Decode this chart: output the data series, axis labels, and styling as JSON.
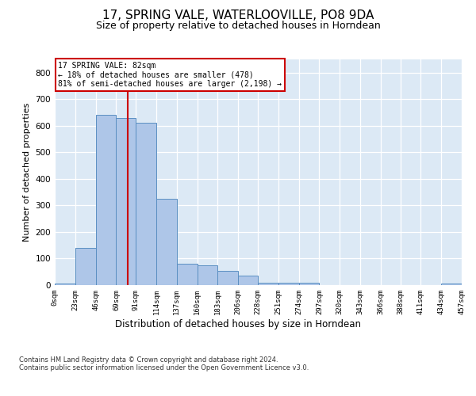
{
  "title1": "17, SPRING VALE, WATERLOOVILLE, PO8 9DA",
  "title2": "Size of property relative to detached houses in Horndean",
  "xlabel": "Distribution of detached houses by size in Horndean",
  "ylabel": "Number of detached properties",
  "footnote": "Contains HM Land Registry data © Crown copyright and database right 2024.\nContains public sector information licensed under the Open Government Licence v3.0.",
  "bin_edges": [
    0,
    23,
    46,
    69,
    91,
    114,
    137,
    160,
    183,
    206,
    228,
    251,
    274,
    297,
    320,
    343,
    366,
    388,
    411,
    434,
    457
  ],
  "bar_heights": [
    5,
    140,
    640,
    630,
    610,
    325,
    80,
    75,
    55,
    35,
    10,
    10,
    10,
    0,
    0,
    0,
    0,
    0,
    0,
    5
  ],
  "bar_color": "#aec6e8",
  "bar_edge_color": "#5a8fc2",
  "property_size": 82,
  "annotation_line1": "17 SPRING VALE: 82sqm",
  "annotation_line2": "← 18% of detached houses are smaller (478)",
  "annotation_line3": "81% of semi-detached houses are larger (2,198) →",
  "annotation_box_color": "#ffffff",
  "annotation_box_edge": "#cc0000",
  "vline_color": "#cc0000",
  "ylim": [
    0,
    850
  ],
  "yticks": [
    0,
    100,
    200,
    300,
    400,
    500,
    600,
    700,
    800
  ],
  "background_color": "#dce9f5",
  "title_fontsize": 11,
  "subtitle_fontsize": 9,
  "xlabel_fontsize": 8.5,
  "ylabel_fontsize": 8,
  "tick_fontsize": 6.5,
  "annotation_fontsize": 7
}
